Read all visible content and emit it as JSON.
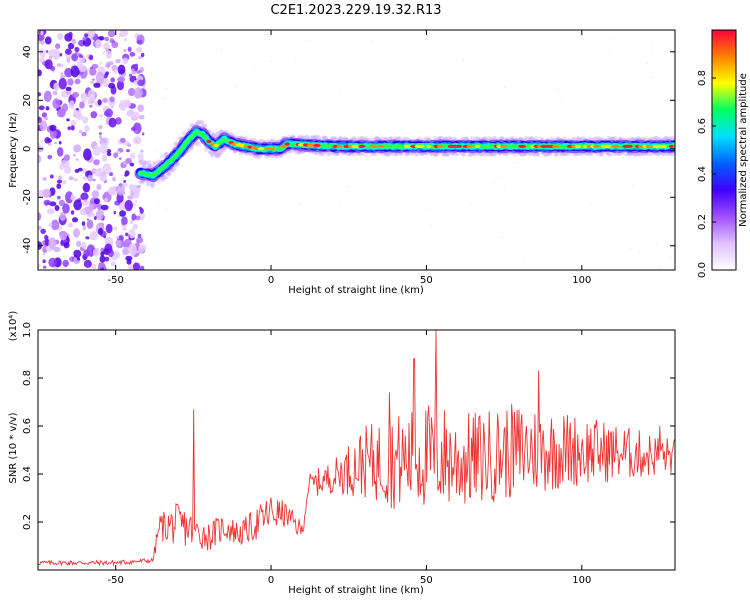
{
  "title": "C2E1.2023.229.19.32.R13",
  "chart_data": [
    {
      "type": "heatmap",
      "xlabel": "Height of straight line (km)",
      "ylabel": "Frequency (Hz)",
      "xlim": [
        -75,
        130
      ],
      "ylim": [
        -50,
        49
      ],
      "x_ticks": [
        "-50",
        "0",
        "50",
        "100"
      ],
      "y_ticks": [
        "40",
        "20",
        "0",
        "-20",
        "-40"
      ],
      "colorbar": {
        "label": "Normalized spectral amplitude",
        "range": [
          0,
          1
        ],
        "ticks": [
          "0.0",
          "0.2",
          "0.4",
          "0.6",
          "0.8"
        ],
        "colors": [
          "#ffffff",
          "#e0c0ff",
          "#a050ff",
          "#4000ff",
          "#0060ff",
          "#00e0ff",
          "#00ff60",
          "#ffff00",
          "#ff8000",
          "#ff0040"
        ]
      },
      "ridge": {
        "x": [
          -42,
          -38,
          -34,
          -30,
          -27,
          -24,
          -22,
          -20,
          -18,
          -15,
          -12,
          -8,
          -4,
          0,
          3,
          5,
          20,
          40,
          60,
          80,
          100,
          130
        ],
        "y": [
          -10,
          -11,
          -7,
          -2,
          3,
          7,
          6,
          3,
          1,
          4,
          2,
          1,
          0,
          0,
          0,
          2,
          1,
          1,
          1,
          1,
          1,
          1
        ]
      },
      "noise_region": {
        "x_from": -75,
        "x_to": -41
      }
    },
    {
      "type": "line",
      "xlabel": "Height of straight line (km)",
      "ylabel": "SNR (10 * v/v)",
      "ylabel_multiplier": "(x10⁴)",
      "xlim": [
        -75,
        130
      ],
      "ylim": [
        0,
        1.0
      ],
      "x_ticks": [
        "-50",
        "0",
        "50",
        "100"
      ],
      "y_ticks": [
        "1.0",
        "0.8",
        "0.6",
        "0.4",
        "0.2"
      ],
      "line_color": "#ee3333",
      "envelope": {
        "x": [
          -75,
          -50,
          -38,
          -36,
          -30,
          -20,
          -15,
          -10,
          -5,
          0,
          5,
          10,
          12,
          20,
          30,
          40,
          50,
          55,
          60,
          80,
          100,
          120,
          130
        ],
        "base": [
          0.02,
          0.02,
          0.03,
          0.12,
          0.1,
          0.08,
          0.12,
          0.1,
          0.12,
          0.16,
          0.18,
          0.12,
          0.3,
          0.32,
          0.3,
          0.25,
          0.25,
          0.25,
          0.25,
          0.3,
          0.35,
          0.38,
          0.4
        ],
        "amp": [
          0.02,
          0.02,
          0.02,
          0.12,
          0.18,
          0.12,
          0.12,
          0.1,
          0.14,
          0.16,
          0.1,
          0.08,
          0.1,
          0.14,
          0.3,
          0.4,
          0.45,
          0.45,
          0.4,
          0.4,
          0.3,
          0.2,
          0.15
        ]
      },
      "peaks": [
        {
          "x": -25,
          "y": 0.67
        },
        {
          "x": 53,
          "y": 1.0
        },
        {
          "x": 46,
          "y": 0.88
        },
        {
          "x": 38,
          "y": 0.74
        },
        {
          "x": 86,
          "y": 0.83
        },
        {
          "x": 125,
          "y": 0.6
        }
      ]
    }
  ]
}
